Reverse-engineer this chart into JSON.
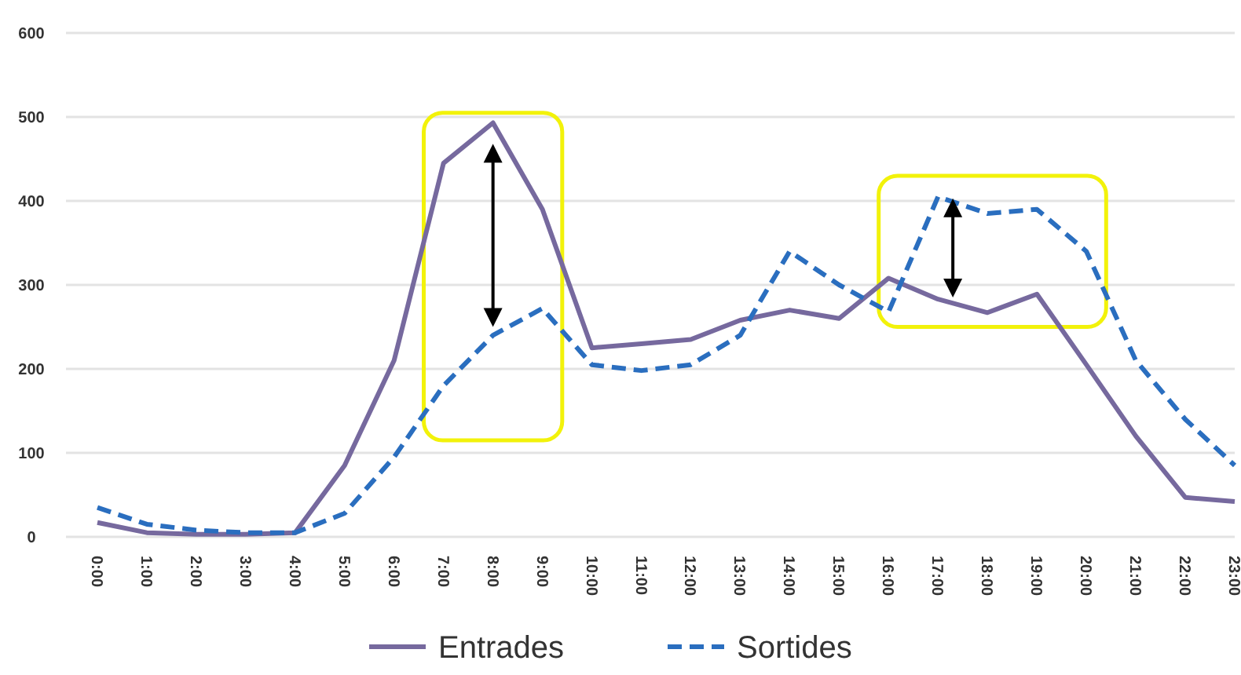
{
  "chart_data": {
    "type": "line",
    "categories": [
      "0:00",
      "1:00",
      "2:00",
      "3:00",
      "4:00",
      "5:00",
      "6:00",
      "7:00",
      "8:00",
      "9:00",
      "10:00",
      "11:00",
      "12:00",
      "13:00",
      "14:00",
      "15:00",
      "16:00",
      "17:00",
      "18:00",
      "19:00",
      "20:00",
      "21:00",
      "22:00",
      "23:00"
    ],
    "series": [
      {
        "name": "Entrades",
        "color": "#76699e",
        "line_style": "solid",
        "values": [
          17,
          5,
          3,
          3,
          5,
          85,
          210,
          445,
          493,
          390,
          225,
          230,
          235,
          258,
          270,
          260,
          308,
          283,
          267,
          289,
          205,
          120,
          47,
          42
        ]
      },
      {
        "name": "Sortides",
        "color": "#2a6ebf",
        "line_style": "dashed",
        "values": [
          35,
          15,
          8,
          5,
          5,
          28,
          95,
          180,
          240,
          272,
          205,
          198,
          205,
          240,
          340,
          300,
          268,
          405,
          385,
          390,
          340,
          210,
          140,
          85
        ]
      }
    ],
    "ylim": [
      0,
      600
    ],
    "yticks": [
      0,
      100,
      200,
      300,
      400,
      500,
      600
    ],
    "grid": "y",
    "legend": "bottom"
  }
}
